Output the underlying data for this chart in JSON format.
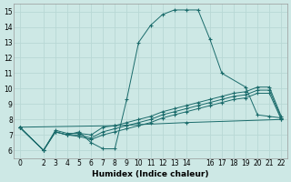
{
  "xlabel": "Humidex (Indice chaleur)",
  "xlim": [
    -0.5,
    22.5
  ],
  "ylim": [
    5.5,
    15.5
  ],
  "yticks": [
    6,
    7,
    8,
    9,
    10,
    11,
    12,
    13,
    14,
    15
  ],
  "xticks": [
    0,
    2,
    3,
    4,
    5,
    6,
    7,
    8,
    9,
    10,
    11,
    12,
    13,
    14,
    16,
    17,
    18,
    19,
    20,
    21,
    22
  ],
  "bg_color": "#cde8e5",
  "grid_color": "#b8d8d5",
  "line_color": "#1a6b6b",
  "lines": [
    {
      "x": [
        0,
        2,
        3,
        4,
        5,
        6,
        7,
        8,
        9,
        10,
        11,
        12,
        13,
        14,
        15,
        16,
        17,
        19,
        20,
        21,
        22
      ],
      "y": [
        7.5,
        6.0,
        7.2,
        7.0,
        7.2,
        6.5,
        6.1,
        6.1,
        9.3,
        13.0,
        14.1,
        14.8,
        15.1,
        15.1,
        15.1,
        13.2,
        11.0,
        10.1,
        8.3,
        8.2,
        8.1
      ]
    },
    {
      "x": [
        0,
        2,
        3,
        4,
        5,
        6,
        7,
        8,
        9,
        10,
        11,
        12,
        13,
        14,
        15,
        16,
        17,
        18,
        19,
        20,
        21,
        22
      ],
      "y": [
        7.5,
        6.0,
        7.3,
        7.1,
        7.1,
        7.0,
        7.5,
        7.6,
        7.8,
        8.0,
        8.2,
        8.5,
        8.7,
        8.9,
        9.1,
        9.3,
        9.5,
        9.7,
        9.8,
        10.1,
        10.1,
        8.2
      ]
    },
    {
      "x": [
        0,
        2,
        3,
        4,
        5,
        6,
        7,
        8,
        9,
        10,
        11,
        12,
        13,
        14,
        15,
        16,
        17,
        18,
        19,
        20,
        21,
        22
      ],
      "y": [
        7.5,
        6.0,
        7.2,
        7.0,
        7.0,
        6.8,
        7.2,
        7.4,
        7.6,
        7.8,
        8.0,
        8.3,
        8.5,
        8.7,
        8.9,
        9.1,
        9.3,
        9.5,
        9.6,
        9.9,
        9.9,
        8.1
      ]
    },
    {
      "x": [
        0,
        2,
        3,
        4,
        5,
        6,
        7,
        8,
        9,
        10,
        11,
        12,
        13,
        14,
        15,
        16,
        17,
        18,
        19,
        20,
        21,
        22
      ],
      "y": [
        7.5,
        6.0,
        7.2,
        7.0,
        6.9,
        6.7,
        7.0,
        7.2,
        7.4,
        7.6,
        7.8,
        8.1,
        8.3,
        8.5,
        8.7,
        8.9,
        9.1,
        9.3,
        9.4,
        9.7,
        9.7,
        8.0
      ]
    },
    {
      "x": [
        0,
        8,
        14,
        22
      ],
      "y": [
        7.5,
        7.6,
        7.8,
        8.0
      ]
    }
  ]
}
